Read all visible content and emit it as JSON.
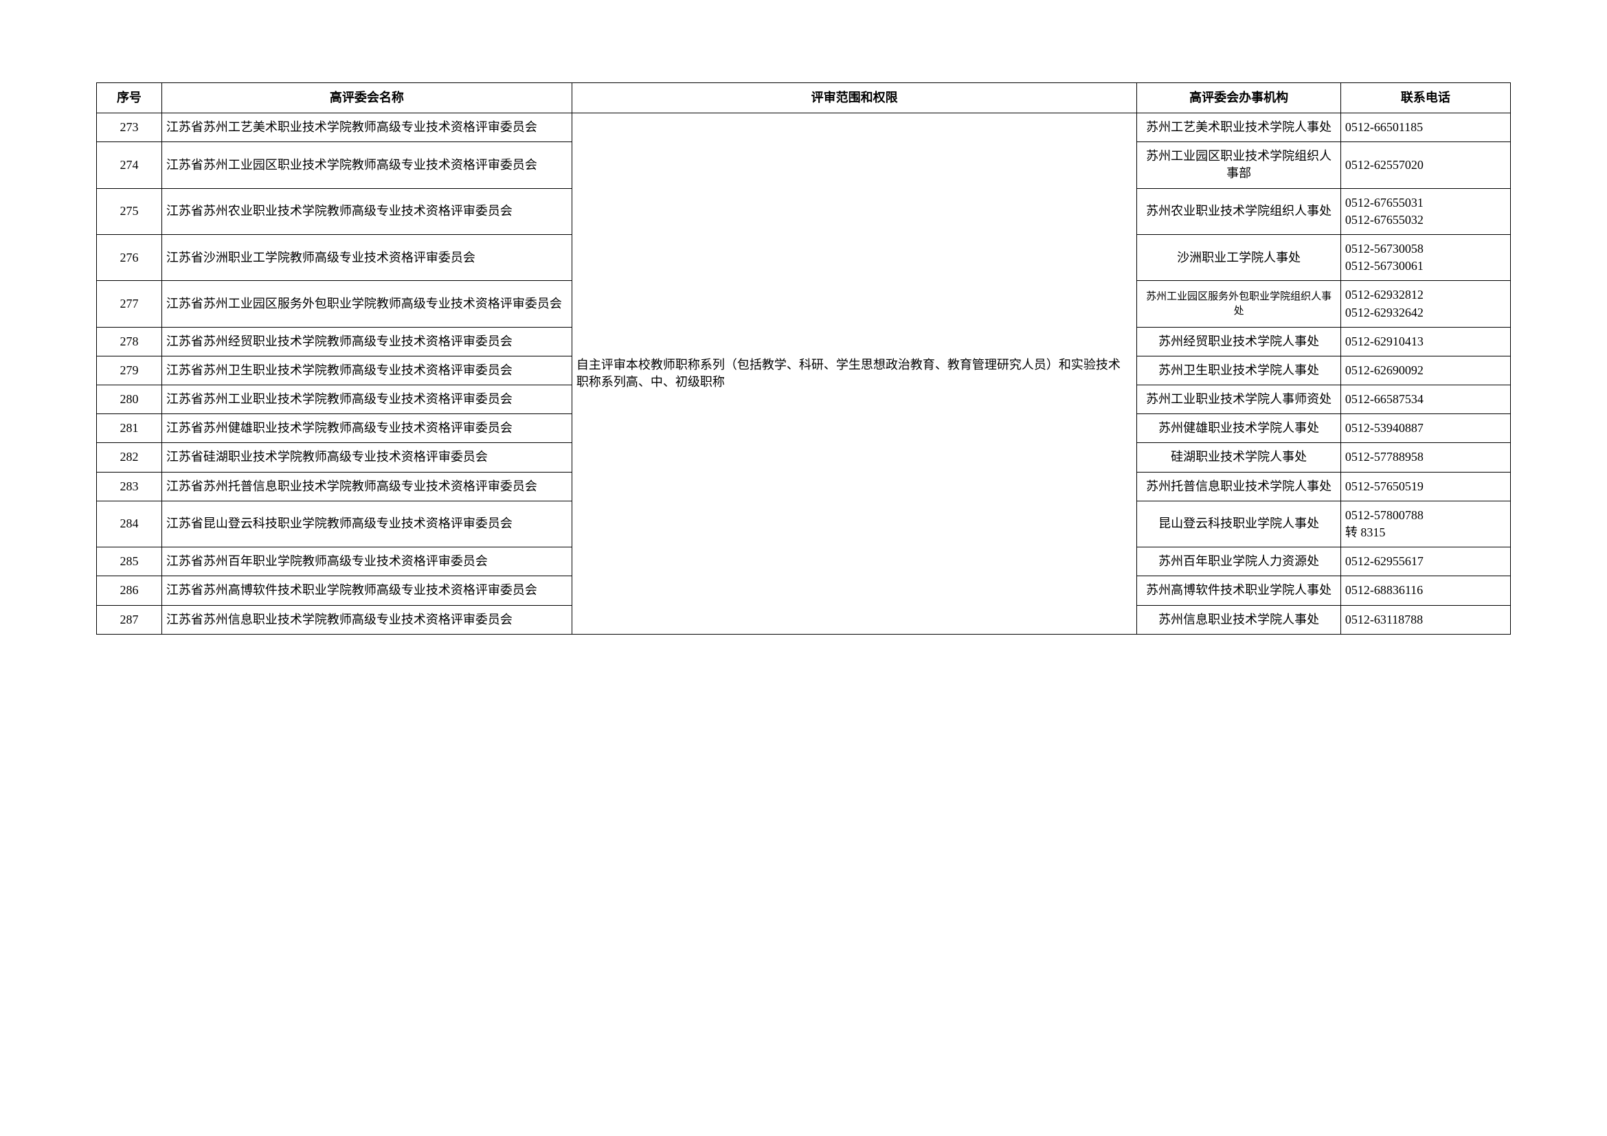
{
  "columns": [
    "序号",
    "高评委会名称",
    "评审范围和权限",
    "高评委会办事机构",
    "联系电话"
  ],
  "scope_text": "自主评审本校教师职称系列（包括教学、科研、学生思想政治教育、教育管理研究人员）和实验技术职称系列高、中、初级职称",
  "rows": [
    {
      "seq": "273",
      "name": "江苏省苏州工艺美术职业技术学院教师高级专业技术资格评审委员会",
      "org": "苏州工艺美术职业技术学院人事处",
      "org_small": false,
      "phone": "0512-66501185"
    },
    {
      "seq": "274",
      "name": "江苏省苏州工业园区职业技术学院教师高级专业技术资格评审委员会",
      "org": "苏州工业园区职业技术学院组织人事部",
      "org_small": false,
      "phone": "0512-62557020"
    },
    {
      "seq": "275",
      "name": "江苏省苏州农业职业技术学院教师高级专业技术资格评审委员会",
      "org": "苏州农业职业技术学院组织人事处",
      "org_small": false,
      "phone": "0512-67655031\n0512-67655032"
    },
    {
      "seq": "276",
      "name": "江苏省沙洲职业工学院教师高级专业技术资格评审委员会",
      "org": "沙洲职业工学院人事处",
      "org_small": false,
      "phone": "0512-56730058\n0512-56730061"
    },
    {
      "seq": "277",
      "name": "江苏省苏州工业园区服务外包职业学院教师高级专业技术资格评审委员会",
      "org": "苏州工业园区服务外包职业学院组织人事处",
      "org_small": true,
      "phone": "0512-62932812\n0512-62932642"
    },
    {
      "seq": "278",
      "name": "江苏省苏州经贸职业技术学院教师高级专业技术资格评审委员会",
      "org": "苏州经贸职业技术学院人事处",
      "org_small": false,
      "phone": "0512-62910413"
    },
    {
      "seq": "279",
      "name": "江苏省苏州卫生职业技术学院教师高级专业技术资格评审委员会",
      "org": "苏州卫生职业技术学院人事处",
      "org_small": false,
      "phone": "0512-62690092"
    },
    {
      "seq": "280",
      "name": "江苏省苏州工业职业技术学院教师高级专业技术资格评审委员会",
      "org": "苏州工业职业技术学院人事师资处",
      "org_small": false,
      "phone": "0512-66587534"
    },
    {
      "seq": "281",
      "name": "江苏省苏州健雄职业技术学院教师高级专业技术资格评审委员会",
      "org": "苏州健雄职业技术学院人事处",
      "org_small": false,
      "phone": "0512-53940887"
    },
    {
      "seq": "282",
      "name": "江苏省硅湖职业技术学院教师高级专业技术资格评审委员会",
      "org": "硅湖职业技术学院人事处",
      "org_small": false,
      "phone": "0512-57788958"
    },
    {
      "seq": "283",
      "name": "江苏省苏州托普信息职业技术学院教师高级专业技术资格评审委员会",
      "org": "苏州托普信息职业技术学院人事处",
      "org_small": false,
      "phone": "0512-57650519"
    },
    {
      "seq": "284",
      "name": "江苏省昆山登云科技职业学院教师高级专业技术资格评审委员会",
      "org": "昆山登云科技职业学院人事处",
      "org_small": false,
      "phone": "0512-57800788\n转 8315"
    },
    {
      "seq": "285",
      "name": "江苏省苏州百年职业学院教师高级专业技术资格评审委员会",
      "org": "苏州百年职业学院人力资源处",
      "org_small": false,
      "phone": "0512-62955617"
    },
    {
      "seq": "286",
      "name": "江苏省苏州高博软件技术职业学院教师高级专业技术资格评审委员会",
      "org": "苏州高博软件技术职业学院人事处",
      "org_small": false,
      "phone": "0512-68836116"
    },
    {
      "seq": "287",
      "name": "江苏省苏州信息职业技术学院教师高级专业技术资格评审委员会",
      "org": "苏州信息职业技术学院人事处",
      "org_small": false,
      "phone": "0512-63118788"
    }
  ]
}
